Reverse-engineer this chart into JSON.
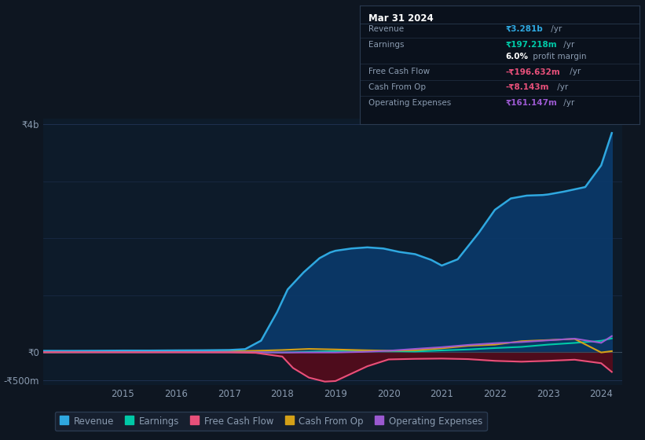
{
  "bg_color": "#0e1621",
  "plot_bg_color": "#0d1b2a",
  "grid_color": "#1e3050",
  "text_color": "#8a9bb0",
  "title_color": "#ffffff",
  "legend_items": [
    {
      "label": "Revenue",
      "color": "#2fa8e0"
    },
    {
      "label": "Earnings",
      "color": "#00c9a7"
    },
    {
      "label": "Free Cash Flow",
      "color": "#e8507a"
    },
    {
      "label": "Cash From Op",
      "color": "#d4a017"
    },
    {
      "label": "Operating Expenses",
      "color": "#9b59d0"
    }
  ],
  "tooltip_bg": "#0a111c",
  "tooltip_border": "#2a3a50",
  "tooltip_title": "Mar 31 2024",
  "revenue": {
    "x": [
      2013.5,
      2014.0,
      2014.5,
      2015.0,
      2015.5,
      2016.0,
      2016.5,
      2017.0,
      2017.3,
      2017.6,
      2017.9,
      2018.1,
      2018.4,
      2018.7,
      2018.9,
      2019.0,
      2019.3,
      2019.6,
      2019.9,
      2020.2,
      2020.5,
      2020.8,
      2021.0,
      2021.3,
      2021.7,
      2022.0,
      2022.3,
      2022.6,
      2022.9,
      2023.0,
      2023.3,
      2023.7,
      2024.0,
      2024.2
    ],
    "y": [
      20,
      20,
      22,
      25,
      25,
      28,
      30,
      35,
      50,
      200,
      700,
      1100,
      1400,
      1650,
      1750,
      1780,
      1820,
      1840,
      1820,
      1760,
      1720,
      1620,
      1520,
      1630,
      2100,
      2500,
      2700,
      2750,
      2760,
      2770,
      2820,
      2900,
      3281,
      3850
    ],
    "color": "#2fa8e0",
    "fill_color": "#0a3a6b"
  },
  "earnings": {
    "x": [
      2013.5,
      2014.0,
      2015.0,
      2016.0,
      2017.0,
      2017.5,
      2018.0,
      2018.5,
      2019.0,
      2019.5,
      2020.0,
      2020.5,
      2021.0,
      2021.5,
      2022.0,
      2022.5,
      2023.0,
      2023.5,
      2024.0,
      2024.2
    ],
    "y": [
      -5,
      -5,
      -3,
      -2,
      -3,
      -5,
      -10,
      5,
      15,
      25,
      18,
      10,
      28,
      45,
      70,
      90,
      130,
      160,
      197,
      240
    ],
    "color": "#00c9a7"
  },
  "free_cash_flow": {
    "x": [
      2013.5,
      2014.0,
      2015.0,
      2016.0,
      2017.0,
      2017.5,
      2018.0,
      2018.2,
      2018.5,
      2018.8,
      2019.0,
      2019.3,
      2019.6,
      2020.0,
      2020.5,
      2021.0,
      2021.5,
      2022.0,
      2022.5,
      2023.0,
      2023.5,
      2024.0,
      2024.2
    ],
    "y": [
      -3,
      -3,
      -4,
      -4,
      -6,
      -15,
      -80,
      -280,
      -450,
      -520,
      -510,
      -380,
      -250,
      -130,
      -120,
      -115,
      -125,
      -155,
      -170,
      -155,
      -135,
      -197,
      -350
    ],
    "color": "#e8507a",
    "fill_color": "#5a0a1a"
  },
  "cash_from_op": {
    "x": [
      2013.5,
      2014.0,
      2015.0,
      2016.0,
      2017.0,
      2017.5,
      2018.0,
      2018.5,
      2019.0,
      2019.5,
      2020.0,
      2020.5,
      2021.0,
      2021.5,
      2022.0,
      2022.5,
      2023.0,
      2023.5,
      2024.0,
      2024.2
    ],
    "y": [
      -2,
      -1,
      2,
      5,
      12,
      22,
      35,
      55,
      45,
      32,
      22,
      32,
      65,
      110,
      130,
      190,
      210,
      230,
      -8,
      15
    ],
    "color": "#d4a017"
  },
  "operating_expenses": {
    "x": [
      2013.5,
      2014.0,
      2015.0,
      2016.0,
      2017.0,
      2017.5,
      2018.0,
      2018.5,
      2019.0,
      2019.5,
      2020.0,
      2020.5,
      2021.0,
      2021.5,
      2022.0,
      2022.5,
      2023.0,
      2023.5,
      2024.0,
      2024.2
    ],
    "y": [
      -4,
      -4,
      -4,
      -4,
      -4,
      -4,
      -8,
      -8,
      -8,
      2,
      22,
      55,
      85,
      125,
      155,
      175,
      205,
      235,
      161,
      280
    ],
    "color": "#9b59d0"
  },
  "ylim": [
    -580,
    4100
  ],
  "xlim": [
    2013.5,
    2024.4
  ],
  "yticks": [
    4000,
    0,
    -500
  ],
  "ytick_labels": [
    "₹4b",
    "₹0",
    "-₹500m"
  ],
  "xtick_years": [
    2015,
    2016,
    2017,
    2018,
    2019,
    2020,
    2021,
    2022,
    2023,
    2024
  ]
}
